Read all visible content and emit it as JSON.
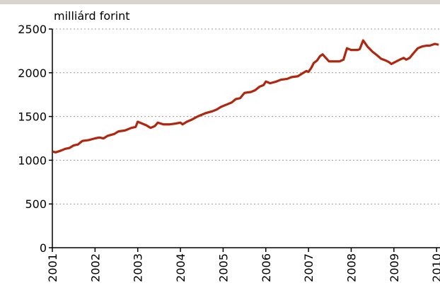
{
  "chart_data": {
    "type": "line",
    "y_label": "milliárd forint",
    "xlim": [
      2001,
      2010.08
    ],
    "xticks": [
      2001,
      2002,
      2003,
      2004,
      2005,
      2006,
      2007,
      2008,
      2009,
      2010
    ],
    "ylim": [
      0,
      2500
    ],
    "yticks": [
      0,
      500,
      1000,
      1500,
      2000,
      2500
    ],
    "grid": true,
    "series": [
      {
        "color": "#b0260f",
        "x": [
          2001.0,
          2001.08,
          2001.2,
          2001.3,
          2001.4,
          2001.5,
          2001.6,
          2001.7,
          2001.85,
          2002.0,
          2002.1,
          2002.2,
          2002.3,
          2002.45,
          2002.55,
          2002.7,
          2002.85,
          2002.95,
          2003.0,
          2003.1,
          2003.2,
          2003.3,
          2003.4,
          2003.47,
          2003.6,
          2003.75,
          2003.9,
          2004.0,
          2004.05,
          2004.15,
          2004.25,
          2004.4,
          2004.5,
          2004.6,
          2004.75,
          2004.85,
          2004.95,
          2005.1,
          2005.2,
          2005.3,
          2005.4,
          2005.5,
          2005.65,
          2005.75,
          2005.85,
          2005.95,
          2006.0,
          2006.1,
          2006.25,
          2006.35,
          2006.5,
          2006.6,
          2006.75,
          2006.85,
          2006.95,
          2007.0,
          2007.07,
          2007.12,
          2007.2,
          2007.27,
          2007.33,
          2007.48,
          2007.6,
          2007.73,
          2007.82,
          2007.9,
          2008.0,
          2008.15,
          2008.2,
          2008.28,
          2008.38,
          2008.5,
          2008.58,
          2008.7,
          2008.81,
          2008.89,
          2008.94,
          2009.06,
          2009.14,
          2009.23,
          2009.29,
          2009.37,
          2009.47,
          2009.56,
          2009.66,
          2009.77,
          2009.84,
          2009.96,
          2010.05
        ],
        "values": [
          1100,
          1090,
          1110,
          1130,
          1140,
          1170,
          1180,
          1220,
          1230,
          1250,
          1260,
          1250,
          1280,
          1300,
          1330,
          1340,
          1370,
          1380,
          1440,
          1420,
          1400,
          1370,
          1390,
          1430,
          1410,
          1410,
          1420,
          1430,
          1410,
          1440,
          1460,
          1500,
          1520,
          1540,
          1560,
          1580,
          1610,
          1640,
          1660,
          1700,
          1710,
          1770,
          1780,
          1800,
          1840,
          1860,
          1900,
          1880,
          1900,
          1920,
          1930,
          1950,
          1960,
          1990,
          2020,
          2010,
          2060,
          2110,
          2140,
          2190,
          2210,
          2130,
          2130,
          2130,
          2150,
          2280,
          2260,
          2260,
          2270,
          2370,
          2300,
          2240,
          2210,
          2160,
          2140,
          2120,
          2100,
          2130,
          2150,
          2170,
          2150,
          2170,
          2230,
          2280,
          2300,
          2310,
          2310,
          2330,
          2320
        ]
      }
    ]
  }
}
